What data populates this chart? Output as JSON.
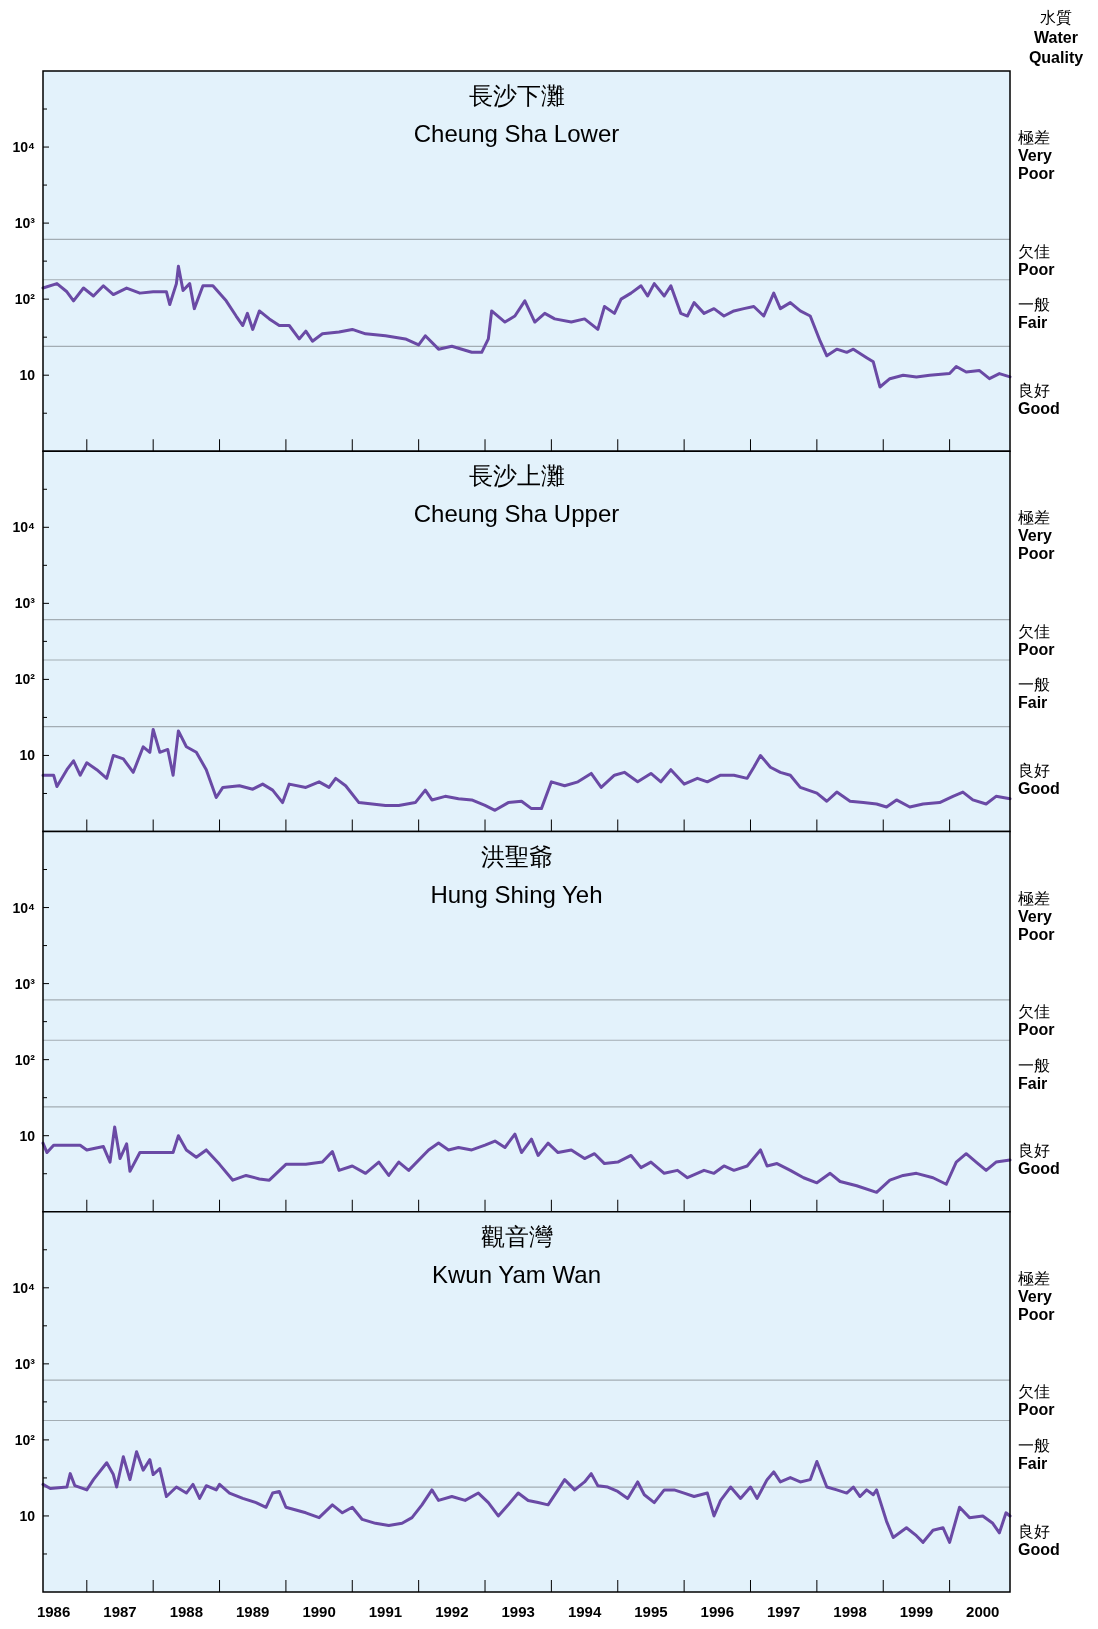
{
  "chart_data": [
    {
      "type": "line",
      "title": "長沙下灘",
      "subtitle": "Cheung Sha Lower",
      "annotations": [
        "極差\nVery\nPoor",
        "欠佳\nPoor",
        "一般\nFair",
        "良好\nGood",
        "水質\nWater\nQuality"
      ],
      "tick_labels": "y",
      "log": "y",
      "xlim": [
        1985.84,
        2000.41
      ],
      "ylim": [
        1,
        100000
      ],
      "xticks": [
        {
          "value": 1986.5,
          "label": null
        },
        {
          "value": 1987.5,
          "label": null
        },
        {
          "value": 1988.5,
          "label": null
        },
        {
          "value": 1989.5,
          "label": null
        },
        {
          "value": 1990.5,
          "label": null
        },
        {
          "value": 1991.5,
          "label": null
        },
        {
          "value": 1992.5,
          "label": null
        },
        {
          "value": 1993.5,
          "label": null
        },
        {
          "value": 1994.5,
          "label": null
        },
        {
          "value": 1995.5,
          "label": null
        },
        {
          "value": 1996.5,
          "label": null
        },
        {
          "value": 1997.5,
          "label": null
        },
        {
          "value": 1998.5,
          "label": null
        },
        {
          "value": 1999.5,
          "label": null
        }
      ],
      "yticks": [
        {
          "value": 3.162,
          "label": null
        },
        {
          "value": 10,
          "label": "10"
        },
        {
          "value": 31.62,
          "label": null
        },
        {
          "value": 100,
          "label": "10²"
        },
        {
          "value": 316.2,
          "label": null
        },
        {
          "value": 1000,
          "label": "10³"
        },
        {
          "value": 3162,
          "label": null
        },
        {
          "value": 10000,
          "label": "10⁴"
        },
        {
          "value": 31623,
          "label": null
        }
      ],
      "ref_lines": [
        {
          "axis": "y",
          "value": 24,
          "color": "#a3adb3"
        },
        {
          "axis": "y",
          "value": 180,
          "color": "#a3adb3"
        },
        {
          "axis": "y",
          "value": 610,
          "color": "#a3adb3"
        }
      ],
      "series": [
        {
          "color": "#6a4aa5",
          "x": [
            1985.84,
            1986.05,
            1986.2,
            1986.3,
            1986.45,
            1986.6,
            1986.75,
            1986.9,
            1987.1,
            1987.3,
            1987.5,
            1987.7,
            1987.75,
            1987.85,
            1987.88,
            1987.95,
            1988.05,
            1988.12,
            1988.25,
            1988.4,
            1988.6,
            1988.75,
            1988.85,
            1988.92,
            1989.0,
            1989.1,
            1989.25,
            1989.4,
            1989.55,
            1989.7,
            1989.8,
            1989.9,
            1990.05,
            1990.3,
            1990.5,
            1990.7,
            1991.0,
            1991.3,
            1991.5,
            1991.6,
            1991.8,
            1992.0,
            1992.3,
            1992.45,
            1992.55,
            1992.6,
            1992.8,
            1992.95,
            1993.1,
            1993.25,
            1993.4,
            1993.55,
            1993.8,
            1994.0,
            1994.2,
            1994.3,
            1994.45,
            1994.55,
            1994.7,
            1994.85,
            1994.95,
            1995.05,
            1995.2,
            1995.3,
            1995.45,
            1995.55,
            1995.65,
            1995.8,
            1995.95,
            1996.1,
            1996.25,
            1996.4,
            1996.55,
            1996.7,
            1996.85,
            1996.95,
            1997.1,
            1997.25,
            1997.4,
            1997.55,
            1997.65,
            1997.8,
            1997.95,
            1998.05,
            1998.25,
            1998.35,
            1998.45,
            1998.6,
            1998.8,
            1999.0,
            1999.2,
            1999.5,
            1999.6,
            1999.75,
            1999.95,
            2000.1,
            2000.25,
            2000.41
          ],
          "values": [
            140,
            160,
            125,
            95,
            140,
            110,
            150,
            115,
            140,
            120,
            125,
            125,
            85,
            160,
            270,
            130,
            160,
            75,
            150,
            150,
            95,
            60,
            45,
            65,
            40,
            70,
            55,
            45,
            45,
            30,
            38,
            28,
            35,
            37,
            40,
            35,
            33,
            30,
            25,
            33,
            22,
            24,
            20,
            20,
            30,
            70,
            50,
            60,
            95,
            50,
            65,
            55,
            50,
            55,
            40,
            80,
            65,
            100,
            120,
            150,
            110,
            160,
            110,
            150,
            65,
            60,
            90,
            65,
            75,
            60,
            70,
            75,
            80,
            60,
            120,
            75,
            90,
            70,
            60,
            28,
            18,
            22,
            20,
            22,
            17,
            15,
            7,
            9,
            10,
            9.5,
            10,
            10.5,
            13,
            11,
            11.5,
            9,
            10.5,
            9.5
          ]
        }
      ]
    },
    {
      "type": "line",
      "title": "長沙上灘",
      "subtitle": "Cheung Sha Upper",
      "annotations": [
        "極差\nVery\nPoor",
        "欠佳\nPoor",
        "一般\nFair",
        "良好\nGood"
      ],
      "tick_labels": "y",
      "log": "y",
      "xlim": [
        1985.84,
        2000.41
      ],
      "ylim": [
        1,
        100000
      ],
      "xticks": [
        {
          "value": 1986.5,
          "label": null
        },
        {
          "value": 1987.5,
          "label": null
        },
        {
          "value": 1988.5,
          "label": null
        },
        {
          "value": 1989.5,
          "label": null
        },
        {
          "value": 1990.5,
          "label": null
        },
        {
          "value": 1991.5,
          "label": null
        },
        {
          "value": 1992.5,
          "label": null
        },
        {
          "value": 1993.5,
          "label": null
        },
        {
          "value": 1994.5,
          "label": null
        },
        {
          "value": 1995.5,
          "label": null
        },
        {
          "value": 1996.5,
          "label": null
        },
        {
          "value": 1997.5,
          "label": null
        },
        {
          "value": 1998.5,
          "label": null
        },
        {
          "value": 1999.5,
          "label": null
        }
      ],
      "yticks": [
        {
          "value": 3.162,
          "label": null
        },
        {
          "value": 10,
          "label": "10"
        },
        {
          "value": 31.62,
          "label": null
        },
        {
          "value": 100,
          "label": "10²"
        },
        {
          "value": 316.2,
          "label": null
        },
        {
          "value": 1000,
          "label": "10³"
        },
        {
          "value": 3162,
          "label": null
        },
        {
          "value": 10000,
          "label": "10⁴"
        },
        {
          "value": 31623,
          "label": null
        }
      ],
      "ref_lines": [
        {
          "axis": "y",
          "value": 24,
          "color": "#a3adb3"
        },
        {
          "axis": "y",
          "value": 180,
          "color": "#a3adb3"
        },
        {
          "axis": "y",
          "value": 610,
          "color": "#a3adb3"
        }
      ],
      "series": [
        {
          "color": "#6a4aa5",
          "x": [
            1985.84,
            1986.0,
            1986.05,
            1986.2,
            1986.3,
            1986.4,
            1986.5,
            1986.65,
            1986.8,
            1986.9,
            1987.05,
            1987.2,
            1987.35,
            1987.45,
            1987.5,
            1987.6,
            1987.72,
            1987.8,
            1987.88,
            1988.0,
            1988.15,
            1988.3,
            1988.45,
            1988.55,
            1988.8,
            1989.0,
            1989.15,
            1989.3,
            1989.45,
            1989.55,
            1989.8,
            1990.0,
            1990.15,
            1990.25,
            1990.4,
            1990.6,
            1990.8,
            1991.0,
            1991.2,
            1991.45,
            1991.6,
            1991.7,
            1991.9,
            1992.1,
            1992.3,
            1992.5,
            1992.65,
            1992.85,
            1993.05,
            1993.2,
            1993.35,
            1993.5,
            1993.7,
            1993.9,
            1994.1,
            1994.25,
            1994.45,
            1994.6,
            1994.8,
            1995.0,
            1995.15,
            1995.3,
            1995.5,
            1995.7,
            1995.85,
            1996.05,
            1996.25,
            1996.45,
            1996.55,
            1996.65,
            1996.8,
            1996.95,
            1997.1,
            1997.25,
            1997.5,
            1997.65,
            1997.8,
            1998.0,
            1998.2,
            1998.4,
            1998.55,
            1998.7,
            1998.9,
            1999.1,
            1999.35,
            1999.55,
            1999.7,
            1999.85,
            2000.05,
            2000.2,
            2000.41
          ],
          "values": [
            5.5,
            5.5,
            3.9,
            6.5,
            8.5,
            5.5,
            8,
            6.5,
            5,
            10,
            9,
            6,
            13,
            11,
            22,
            11,
            12,
            5.5,
            21,
            13,
            11,
            6.5,
            2.8,
            3.8,
            4,
            3.6,
            4.2,
            3.5,
            2.4,
            4.2,
            3.8,
            4.5,
            3.8,
            5,
            4,
            2.4,
            2.3,
            2.2,
            2.2,
            2.4,
            3.5,
            2.6,
            2.9,
            2.7,
            2.6,
            2.2,
            1.9,
            2.4,
            2.5,
            2.0,
            2.0,
            4.5,
            4.0,
            4.5,
            5.8,
            3.8,
            5.5,
            6,
            4.5,
            5.8,
            4.5,
            6.5,
            4.2,
            5,
            4.5,
            5.5,
            5.5,
            5,
            7,
            10,
            7,
            6,
            5.5,
            3.8,
            3.2,
            2.5,
            3.3,
            2.5,
            2.4,
            2.3,
            2.1,
            2.6,
            2.1,
            2.3,
            2.4,
            2.9,
            3.3,
            2.6,
            2.3,
            2.9,
            2.7
          ]
        }
      ]
    },
    {
      "type": "line",
      "title": "洪聖爺",
      "subtitle": "Hung Shing Yeh",
      "annotations": [
        "極差\nVery\nPoor",
        "欠佳\nPoor",
        "一般\nFair",
        "良好\nGood"
      ],
      "tick_labels": "y",
      "log": "y",
      "xlim": [
        1985.84,
        2000.41
      ],
      "ylim": [
        1,
        100000
      ],
      "xticks": [
        {
          "value": 1986.5,
          "label": null
        },
        {
          "value": 1987.5,
          "label": null
        },
        {
          "value": 1988.5,
          "label": null
        },
        {
          "value": 1989.5,
          "label": null
        },
        {
          "value": 1990.5,
          "label": null
        },
        {
          "value": 1991.5,
          "label": null
        },
        {
          "value": 1992.5,
          "label": null
        },
        {
          "value": 1993.5,
          "label": null
        },
        {
          "value": 1994.5,
          "label": null
        },
        {
          "value": 1995.5,
          "label": null
        },
        {
          "value": 1996.5,
          "label": null
        },
        {
          "value": 1997.5,
          "label": null
        },
        {
          "value": 1998.5,
          "label": null
        },
        {
          "value": 1999.5,
          "label": null
        }
      ],
      "yticks": [
        {
          "value": 3.162,
          "label": null
        },
        {
          "value": 10,
          "label": "10"
        },
        {
          "value": 31.62,
          "label": null
        },
        {
          "value": 100,
          "label": "10²"
        },
        {
          "value": 316.2,
          "label": null
        },
        {
          "value": 1000,
          "label": "10³"
        },
        {
          "value": 3162,
          "label": null
        },
        {
          "value": 10000,
          "label": "10⁴"
        },
        {
          "value": 31623,
          "label": null
        }
      ],
      "ref_lines": [
        {
          "axis": "y",
          "value": 24,
          "color": "#a3adb3"
        },
        {
          "axis": "y",
          "value": 180,
          "color": "#a3adb3"
        },
        {
          "axis": "y",
          "value": 610,
          "color": "#a3adb3"
        }
      ],
      "series": [
        {
          "color": "#6a4aa5",
          "x": [
            1985.84,
            1985.9,
            1986.0,
            1986.4,
            1986.5,
            1986.75,
            1986.85,
            1986.92,
            1987.0,
            1987.1,
            1987.15,
            1987.3,
            1987.5,
            1987.8,
            1987.88,
            1988.0,
            1988.15,
            1988.3,
            1988.5,
            1988.7,
            1988.9,
            1989.1,
            1989.25,
            1989.5,
            1989.8,
            1990.05,
            1990.2,
            1990.3,
            1990.5,
            1990.7,
            1990.9,
            1991.05,
            1991.2,
            1991.35,
            1991.65,
            1991.8,
            1991.95,
            1992.1,
            1992.3,
            1992.5,
            1992.65,
            1992.8,
            1992.95,
            1993.05,
            1993.2,
            1993.3,
            1993.45,
            1993.6,
            1993.8,
            1994.0,
            1994.15,
            1994.3,
            1994.5,
            1994.7,
            1994.85,
            1995.0,
            1995.2,
            1995.4,
            1995.55,
            1995.8,
            1995.95,
            1996.1,
            1996.25,
            1996.45,
            1996.65,
            1996.75,
            1996.9,
            1997.1,
            1997.3,
            1997.5,
            1997.7,
            1997.85,
            1998.1,
            1998.4,
            1998.6,
            1998.8,
            1999.0,
            1999.25,
            1999.45,
            1999.6,
            1999.75,
            1999.9,
            2000.05,
            2000.2,
            2000.41
          ],
          "values": [
            8,
            6,
            7.5,
            7.5,
            6.5,
            7.2,
            4.5,
            13,
            5,
            7.8,
            3.4,
            6,
            6,
            6,
            10,
            6.5,
            5.2,
            6.5,
            4.2,
            2.6,
            3,
            2.7,
            2.6,
            4.2,
            4.2,
            4.5,
            6.2,
            3.5,
            4,
            3.2,
            4.5,
            3,
            4.5,
            3.5,
            6.5,
            8,
            6.5,
            7,
            6.5,
            7.5,
            8.5,
            7,
            10.5,
            6,
            9,
            5.5,
            8,
            6,
            6.5,
            5,
            5.8,
            4.3,
            4.5,
            5.5,
            3.8,
            4.5,
            3.2,
            3.5,
            2.8,
            3.5,
            3.2,
            4,
            3.5,
            4,
            6.5,
            4,
            4.3,
            3.5,
            2.8,
            2.4,
            3.2,
            2.5,
            2.2,
            1.8,
            2.6,
            3.0,
            3.2,
            2.8,
            2.3,
            4.5,
            5.8,
            4.5,
            3.5,
            4.5,
            4.8
          ]
        }
      ]
    },
    {
      "type": "line",
      "title": "觀音灣",
      "subtitle": "Kwun Yam Wan",
      "annotations": [
        "極差\nVery\nPoor",
        "欠佳\nPoor",
        "一般\nFair",
        "良好\nGood"
      ],
      "log": "y",
      "xlim": [
        1985.84,
        2000.41
      ],
      "ylim": [
        1,
        100000
      ],
      "xticks": [
        1986,
        {
          "value": 1986.5,
          "label": null
        },
        1987,
        {
          "value": 1987.5,
          "label": null
        },
        1988,
        {
          "value": 1988.5,
          "label": null
        },
        1989,
        {
          "value": 1989.5,
          "label": null
        },
        1990,
        {
          "value": 1990.5,
          "label": null
        },
        1991,
        {
          "value": 1991.5,
          "label": null
        },
        1992,
        {
          "value": 1992.5,
          "label": null
        },
        1993,
        {
          "value": 1993.5,
          "label": null
        },
        1994,
        {
          "value": 1994.5,
          "label": null
        },
        1995,
        {
          "value": 1995.5,
          "label": null
        },
        1996,
        {
          "value": 1996.5,
          "label": null
        },
        1997,
        {
          "value": 1997.5,
          "label": null
        },
        1998,
        {
          "value": 1998.5,
          "label": null
        },
        1999,
        {
          "value": 1999.5,
          "label": null
        },
        2000
      ],
      "yticks": [
        {
          "value": 3.162,
          "label": null
        },
        {
          "value": 10,
          "label": "10"
        },
        {
          "value": 31.62,
          "label": null
        },
        {
          "value": 100,
          "label": "10²"
        },
        {
          "value": 316.2,
          "label": null
        },
        {
          "value": 1000,
          "label": "10³"
        },
        {
          "value": 3162,
          "label": null
        },
        {
          "value": 10000,
          "label": "10⁴"
        },
        {
          "value": 31623,
          "label": null
        }
      ],
      "ref_lines": [
        {
          "axis": "y",
          "value": 24,
          "color": "#a3adb3"
        },
        {
          "axis": "y",
          "value": 180,
          "color": "#a3adb3"
        },
        {
          "axis": "y",
          "value": 610,
          "color": "#a3adb3"
        }
      ],
      "series": [
        {
          "color": "#6a4aa5",
          "x": [
            1985.84,
            1985.95,
            1986.2,
            1986.25,
            1986.32,
            1986.5,
            1986.6,
            1986.8,
            1986.9,
            1986.95,
            1987.05,
            1987.15,
            1987.25,
            1987.35,
            1987.45,
            1987.5,
            1987.6,
            1987.7,
            1987.85,
            1988.0,
            1988.1,
            1988.2,
            1988.3,
            1988.45,
            1988.5,
            1988.65,
            1988.85,
            1989.05,
            1989.2,
            1989.3,
            1989.4,
            1989.5,
            1989.8,
            1990.0,
            1990.2,
            1990.35,
            1990.5,
            1990.65,
            1990.85,
            1991.05,
            1991.25,
            1991.4,
            1991.55,
            1991.7,
            1991.8,
            1992.0,
            1992.2,
            1992.4,
            1992.55,
            1992.7,
            1992.85,
            1993.0,
            1993.15,
            1993.3,
            1993.45,
            1993.6,
            1993.7,
            1993.85,
            1994.0,
            1994.1,
            1994.2,
            1994.35,
            1994.5,
            1994.65,
            1994.8,
            1994.9,
            1995.05,
            1995.2,
            1995.35,
            1995.5,
            1995.65,
            1995.85,
            1995.95,
            1996.05,
            1996.2,
            1996.35,
            1996.5,
            1996.6,
            1996.75,
            1996.85,
            1996.95,
            1997.1,
            1997.25,
            1997.4,
            1997.5,
            1997.65,
            1997.8,
            1997.95,
            1998.05,
            1998.15,
            1998.25,
            1998.35,
            1998.4,
            1998.55,
            1998.65,
            1998.85,
            1999.0,
            1999.1,
            1999.25,
            1999.4,
            1999.5,
            1999.65,
            1999.8,
            2000.0,
            2000.15,
            2000.25,
            2000.35,
            2000.41
          ],
          "values": [
            26,
            23,
            24,
            36,
            25,
            22,
            30,
            50,
            35,
            24,
            60,
            30,
            70,
            40,
            55,
            35,
            42,
            18,
            24,
            20,
            26,
            17,
            25,
            22,
            26,
            20,
            17,
            15,
            13,
            20,
            21,
            13,
            11,
            9.5,
            14,
            11,
            13,
            9,
            8,
            7.5,
            8,
            9.5,
            14,
            22,
            16,
            18,
            16,
            20,
            15,
            10,
            14,
            20,
            16,
            15,
            14,
            22,
            30,
            22,
            28,
            36,
            25,
            24,
            21,
            17,
            28,
            19,
            15,
            22,
            22,
            20,
            18,
            20,
            10,
            16,
            24,
            17,
            24,
            17,
            30,
            38,
            28,
            32,
            28,
            30,
            52,
            24,
            22,
            20,
            24,
            18,
            22,
            19,
            22,
            8.5,
            5.2,
            7,
            5.5,
            4.5,
            6.5,
            7,
            4.5,
            13,
            9.5,
            10,
            8,
            6,
            11,
            10
          ]
        }
      ]
    }
  ]
}
